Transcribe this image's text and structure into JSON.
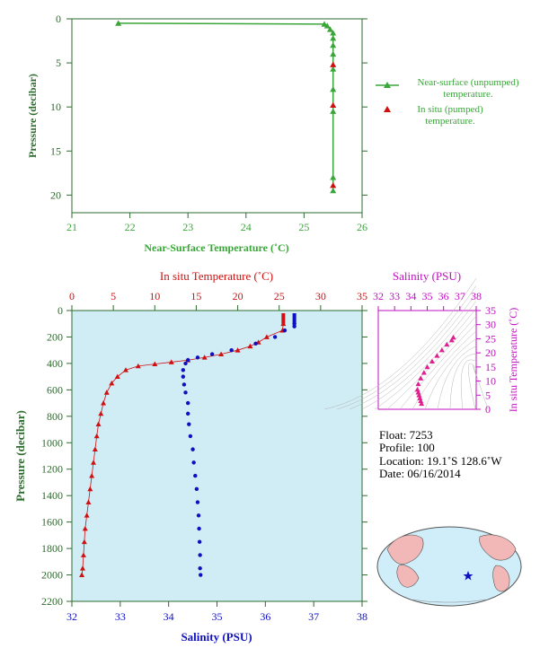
{
  "chart_data": [
    {
      "type": "line",
      "xlabel": "Near-Surface Temperature (˚C)",
      "ylabel": "Pressure (decibar)",
      "xlim": [
        21,
        26
      ],
      "ylim": [
        0,
        22
      ],
      "x_ticks": [
        "21",
        "22",
        "23",
        "24",
        "25",
        "26"
      ],
      "y_ticks": [
        "0",
        "5",
        "10",
        "15",
        "20"
      ],
      "legend_position": "right",
      "series": [
        {
          "name": "Near-surface (unpumped) temperature.",
          "color": "#3aa63a",
          "points": [
            [
              21.8,
              0.5
            ],
            [
              25.35,
              0.6
            ],
            [
              25.4,
              0.8
            ],
            [
              25.45,
              1.2
            ],
            [
              25.5,
              1.6
            ],
            [
              25.5,
              2.2
            ],
            [
              25.5,
              3.0
            ],
            [
              25.5,
              4.0
            ],
            [
              25.5,
              5.7
            ],
            [
              25.5,
              8.0
            ],
            [
              25.5,
              10.5
            ],
            [
              25.5,
              18.0
            ],
            [
              25.5,
              19.5
            ]
          ]
        },
        {
          "name": "In situ (pumped) temperature.",
          "color": "#d01010",
          "points": [
            [
              25.5,
              5.2
            ],
            [
              25.5,
              9.8
            ],
            [
              25.5,
              18.9
            ]
          ]
        }
      ]
    },
    {
      "type": "scatter",
      "x_top_label": "In situ Temperature (˚C)",
      "x_bottom_label": "Salinity (PSU)",
      "ylabel": "Pressure (decibar)",
      "temp_lim": [
        0,
        35
      ],
      "sal_lim": [
        32,
        38
      ],
      "ylim": [
        0,
        2200
      ],
      "temp_ticks": [
        "0",
        "5",
        "10",
        "15",
        "20",
        "25",
        "30",
        "35"
      ],
      "sal_ticks": [
        "32",
        "33",
        "34",
        "35",
        "36",
        "37",
        "38"
      ],
      "y_ticks": [
        "0",
        "200",
        "400",
        "600",
        "800",
        "1000",
        "1200",
        "1400",
        "1600",
        "1800",
        "2000",
        "2200"
      ],
      "background": "#d0ecf5",
      "temperature_series": [
        [
          25.5,
          100
        ],
        [
          25.4,
          150
        ],
        [
          23.5,
          200
        ],
        [
          22.5,
          240
        ],
        [
          21.5,
          270
        ],
        [
          20,
          300
        ],
        [
          18,
          330
        ],
        [
          16,
          355
        ],
        [
          14,
          375
        ],
        [
          12,
          390
        ],
        [
          10,
          405
        ],
        [
          8,
          420
        ],
        [
          6.5,
          450
        ],
        [
          5.5,
          500
        ],
        [
          4.8,
          550
        ],
        [
          4.2,
          620
        ],
        [
          3.8,
          700
        ],
        [
          3.5,
          780
        ],
        [
          3.2,
          860
        ],
        [
          3.0,
          950
        ],
        [
          2.8,
          1050
        ],
        [
          2.6,
          1150
        ],
        [
          2.4,
          1250
        ],
        [
          2.2,
          1350
        ],
        [
          2.0,
          1450
        ],
        [
          1.8,
          1550
        ],
        [
          1.6,
          1650
        ],
        [
          1.5,
          1750
        ],
        [
          1.4,
          1850
        ],
        [
          1.3,
          1950
        ],
        [
          1.2,
          2000
        ]
      ],
      "salinity_series": [
        [
          36.6,
          100
        ],
        [
          36.6,
          120
        ],
        [
          36.4,
          150
        ],
        [
          36.2,
          200
        ],
        [
          35.8,
          250
        ],
        [
          35.3,
          300
        ],
        [
          34.9,
          330
        ],
        [
          34.6,
          355
        ],
        [
          34.4,
          375
        ],
        [
          34.35,
          400
        ],
        [
          34.3,
          450
        ],
        [
          34.3,
          500
        ],
        [
          34.32,
          560
        ],
        [
          34.35,
          620
        ],
        [
          34.4,
          700
        ],
        [
          34.4,
          780
        ],
        [
          34.42,
          860
        ],
        [
          34.45,
          950
        ],
        [
          34.5,
          1050
        ],
        [
          34.52,
          1150
        ],
        [
          34.55,
          1250
        ],
        [
          34.58,
          1350
        ],
        [
          34.6,
          1450
        ],
        [
          34.62,
          1550
        ],
        [
          34.63,
          1650
        ],
        [
          34.64,
          1750
        ],
        [
          34.65,
          1850
        ],
        [
          34.65,
          1950
        ],
        [
          34.66,
          2000
        ]
      ]
    },
    {
      "type": "scatter",
      "title": "Salinity (PSU)",
      "ylabel": "In situ Temperature (˚C)",
      "xlim": [
        32,
        38
      ],
      "ylim": [
        0,
        35
      ],
      "x_ticks": [
        "32",
        "33",
        "34",
        "35",
        "36",
        "37",
        "38"
      ],
      "y_ticks": [
        "0",
        "5",
        "10",
        "15",
        "20",
        "25",
        "30",
        "35"
      ],
      "points": [
        [
          34.65,
          2
        ],
        [
          34.6,
          3
        ],
        [
          34.55,
          4
        ],
        [
          34.5,
          5
        ],
        [
          34.45,
          6
        ],
        [
          34.4,
          7
        ],
        [
          34.45,
          9
        ],
        [
          34.6,
          11
        ],
        [
          34.8,
          13
        ],
        [
          35.0,
          15
        ],
        [
          35.3,
          17
        ],
        [
          35.6,
          19
        ],
        [
          35.9,
          21
        ],
        [
          36.2,
          23
        ],
        [
          36.5,
          24.5
        ],
        [
          36.6,
          25.5
        ]
      ]
    }
  ],
  "float_info": {
    "float": "Float:  7253",
    "profile": "Profile:  100",
    "location": "Location:  19.1˚S  128.6˚W",
    "date": "Date:  06/16/2014"
  }
}
